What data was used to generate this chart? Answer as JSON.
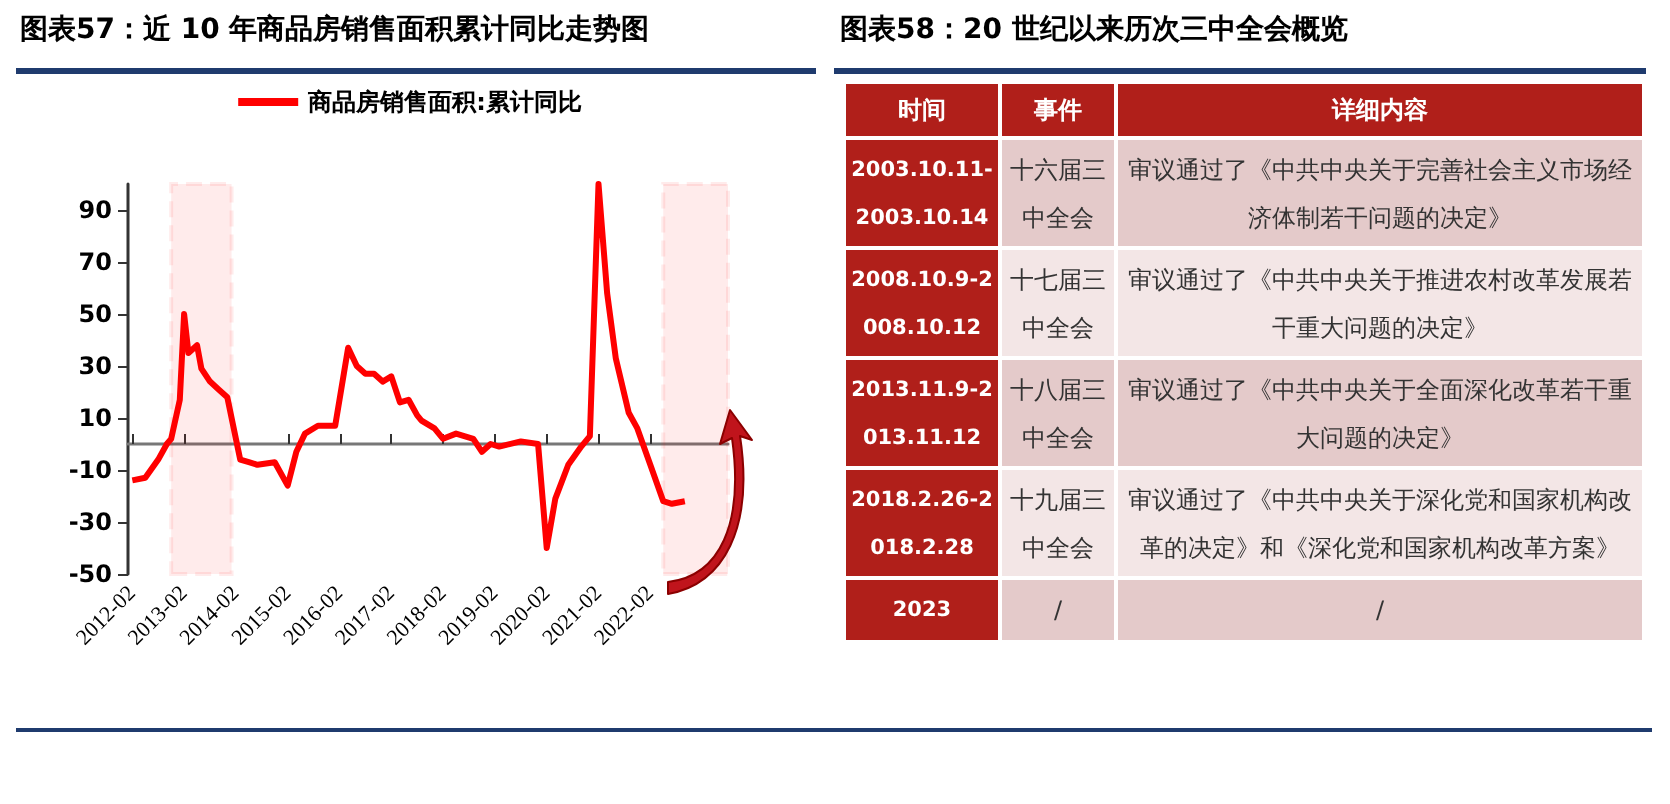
{
  "chart_data": [
    {
      "type": "line",
      "title": "图表57：近 10 年商品房销售面积累计同比走势图",
      "x": [
        "2012-02",
        "2012-05",
        "2012-08",
        "2012-10",
        "2012-11",
        "2013-01",
        "2013-02",
        "2013-03",
        "2013-05",
        "2013-06",
        "2013-08",
        "2013-10",
        "2013-12",
        "2014-02",
        "2014-03",
        "2014-05",
        "2014-07",
        "2014-11",
        "2015-02",
        "2015-04",
        "2015-06",
        "2015-09",
        "2016-01",
        "2016-03",
        "2016-04",
        "2016-06",
        "2016-08",
        "2016-10",
        "2016-12",
        "2017-02",
        "2017-04",
        "2017-06",
        "2017-08",
        "2017-09",
        "2017-12",
        "2018-02",
        "2018-05",
        "2018-09",
        "2018-11",
        "2019-01",
        "2019-03",
        "2019-08",
        "2019-12",
        "2020-02",
        "2020-04",
        "2020-07",
        "2020-10",
        "2020-12",
        "2021-02",
        "2021-04",
        "2021-06",
        "2021-09",
        "2021-11",
        "2022-02",
        "2022-05",
        "2022-07",
        "2022-10"
      ],
      "series": [
        {
          "name": "商品房销售面积:累计同比",
          "color": "#ff0000",
          "values": [
            -14,
            -13,
            -6,
            0,
            2,
            17,
            50,
            35,
            38,
            29,
            24,
            21,
            18,
            2,
            -6,
            -7,
            -8,
            -7,
            -16,
            -3,
            4,
            7,
            7,
            27,
            37,
            30,
            27,
            27,
            24,
            26,
            16,
            17,
            11,
            9,
            6,
            2,
            4,
            2,
            -3,
            0,
            -1,
            1,
            0,
            -40,
            -21,
            -8,
            -1,
            3,
            100,
            58,
            33,
            12,
            6,
            -8,
            -22,
            -23,
            -22
          ]
        }
      ],
      "xlim": [
        "2012-01",
        "2023-08"
      ],
      "xticks": [
        "2012-02",
        "2013-02",
        "2014-02",
        "2015-02",
        "2016-02",
        "2017-02",
        "2018-02",
        "2019-02",
        "2020-02",
        "2021-02",
        "2022-02"
      ],
      "ylim": [
        -50,
        100
      ],
      "yticks": [
        -50,
        -30,
        -10,
        10,
        30,
        50,
        70,
        90
      ],
      "bands": [
        {
          "axis": "x",
          "from": "2012-11",
          "to": "2014-01",
          "color": "#ff0000"
        },
        {
          "axis": "x",
          "from": "2022-05",
          "to": "2023-08",
          "color": "#ff0000"
        }
      ],
      "grid": false,
      "legend": "top",
      "marker": "none",
      "line_style": "solid"
    },
    {
      "type": "other",
      "title": "图表58：20 世纪以来历次三中全会概览",
      "annotations": [
        "时间",
        "事件",
        "详细内容",
        "2003.10.11-2003.10.14",
        "十六届三中全会",
        "审议通过了《中共中央关于完善社会主义市场经济体制若干问题的决定》",
        "2008.10.9-2008.10.12",
        "十七届三中全会",
        "审议通过了《中共中央关于推进农村改革发展若干重大问题的决定》",
        "2013.11.9-2013.11.12",
        "十八届三中全会",
        "审议通过了《中共中央关于全面深化改革若干重大问题的决定》",
        "2018.2.26-2018.2.28",
        "十九届三中全会",
        "审议通过了《中共中央关于深化党和国家机构改革的决定》和《深化党和国家机构改革方案》",
        "2023",
        "/",
        "/"
      ]
    }
  ]
}
